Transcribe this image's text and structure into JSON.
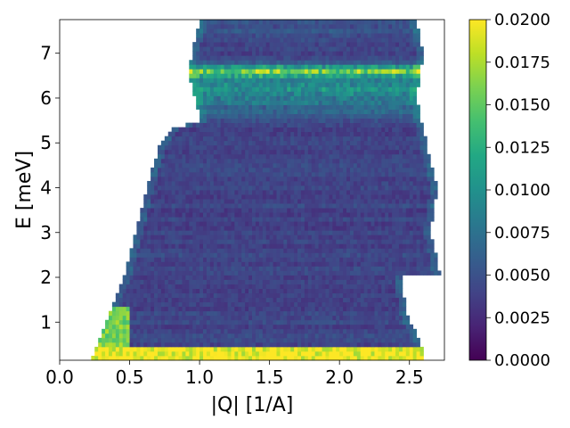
{
  "chart_data": {
    "type": "heatmap",
    "title": "",
    "xlabel": "|Q| [1/A]",
    "ylabel": "E [meV]",
    "xlim": [
      0.0,
      2.75
    ],
    "ylim": [
      0.15,
      7.75
    ],
    "x_ticks": [
      0.0,
      0.5,
      1.0,
      1.5,
      2.0,
      2.5
    ],
    "x_tick_labels": [
      "0.0",
      "0.5",
      "1.0",
      "1.5",
      "2.0",
      "2.5"
    ],
    "y_ticks": [
      1,
      2,
      3,
      4,
      5,
      6,
      7
    ],
    "y_tick_labels": [
      "1",
      "2",
      "3",
      "4",
      "5",
      "6",
      "7"
    ],
    "colormap": "viridis",
    "color_range": [
      0.0,
      0.02
    ],
    "colorbar_ticks": [
      0.0,
      0.0025,
      0.005,
      0.0075,
      0.01,
      0.0125,
      0.015,
      0.0175,
      0.02
    ],
    "colorbar_tick_labels": [
      "0.0000",
      "0.0025",
      "0.0050",
      "0.0075",
      "0.0100",
      "0.0125",
      "0.0150",
      "0.0175",
      "0.0200"
    ],
    "grid": false,
    "q_bin_width": 0.025,
    "e_bin_width": 0.1,
    "coverage": {
      "q_min_points": [
        [
          0.15,
          0.23
        ],
        [
          0.5,
          0.27
        ],
        [
          0.8,
          0.31
        ],
        [
          1.2,
          0.36
        ],
        [
          1.6,
          0.4
        ],
        [
          2.0,
          0.46
        ],
        [
          2.6,
          0.51
        ],
        [
          3.2,
          0.56
        ],
        [
          3.8,
          0.61
        ],
        [
          4.4,
          0.66
        ],
        [
          4.9,
          0.71
        ],
        [
          5.3,
          0.8
        ],
        [
          5.5,
          1.0
        ],
        [
          6.0,
          0.97
        ],
        [
          6.6,
          0.92
        ],
        [
          7.2,
          0.96
        ],
        [
          7.75,
          1.0
        ]
      ],
      "q_max_points": [
        [
          0.15,
          2.6
        ],
        [
          0.6,
          2.58
        ],
        [
          1.2,
          2.47
        ],
        [
          2.0,
          2.45
        ],
        [
          2.1,
          2.72
        ],
        [
          3.0,
          2.65
        ],
        [
          4.0,
          2.7
        ],
        [
          5.0,
          2.62
        ],
        [
          6.0,
          2.55
        ],
        [
          7.0,
          2.6
        ],
        [
          7.75,
          2.55
        ]
      ]
    },
    "intensity_features": {
      "background": 0.004,
      "elastic_line": {
        "e_below": 0.45,
        "value": 0.02
      },
      "low_q_band": {
        "q_below": 0.5,
        "e_below": 1.4,
        "value": 0.015
      },
      "flat_bands": [
        {
          "e_center": 6.2,
          "e_halfwidth": 0.8,
          "value": 0.011
        },
        {
          "e_center": 6.6,
          "e_halfwidth": 0.2,
          "value": 0.014
        },
        {
          "e_center": 7.5,
          "e_halfwidth": 0.3,
          "value": 0.006
        }
      ]
    }
  }
}
